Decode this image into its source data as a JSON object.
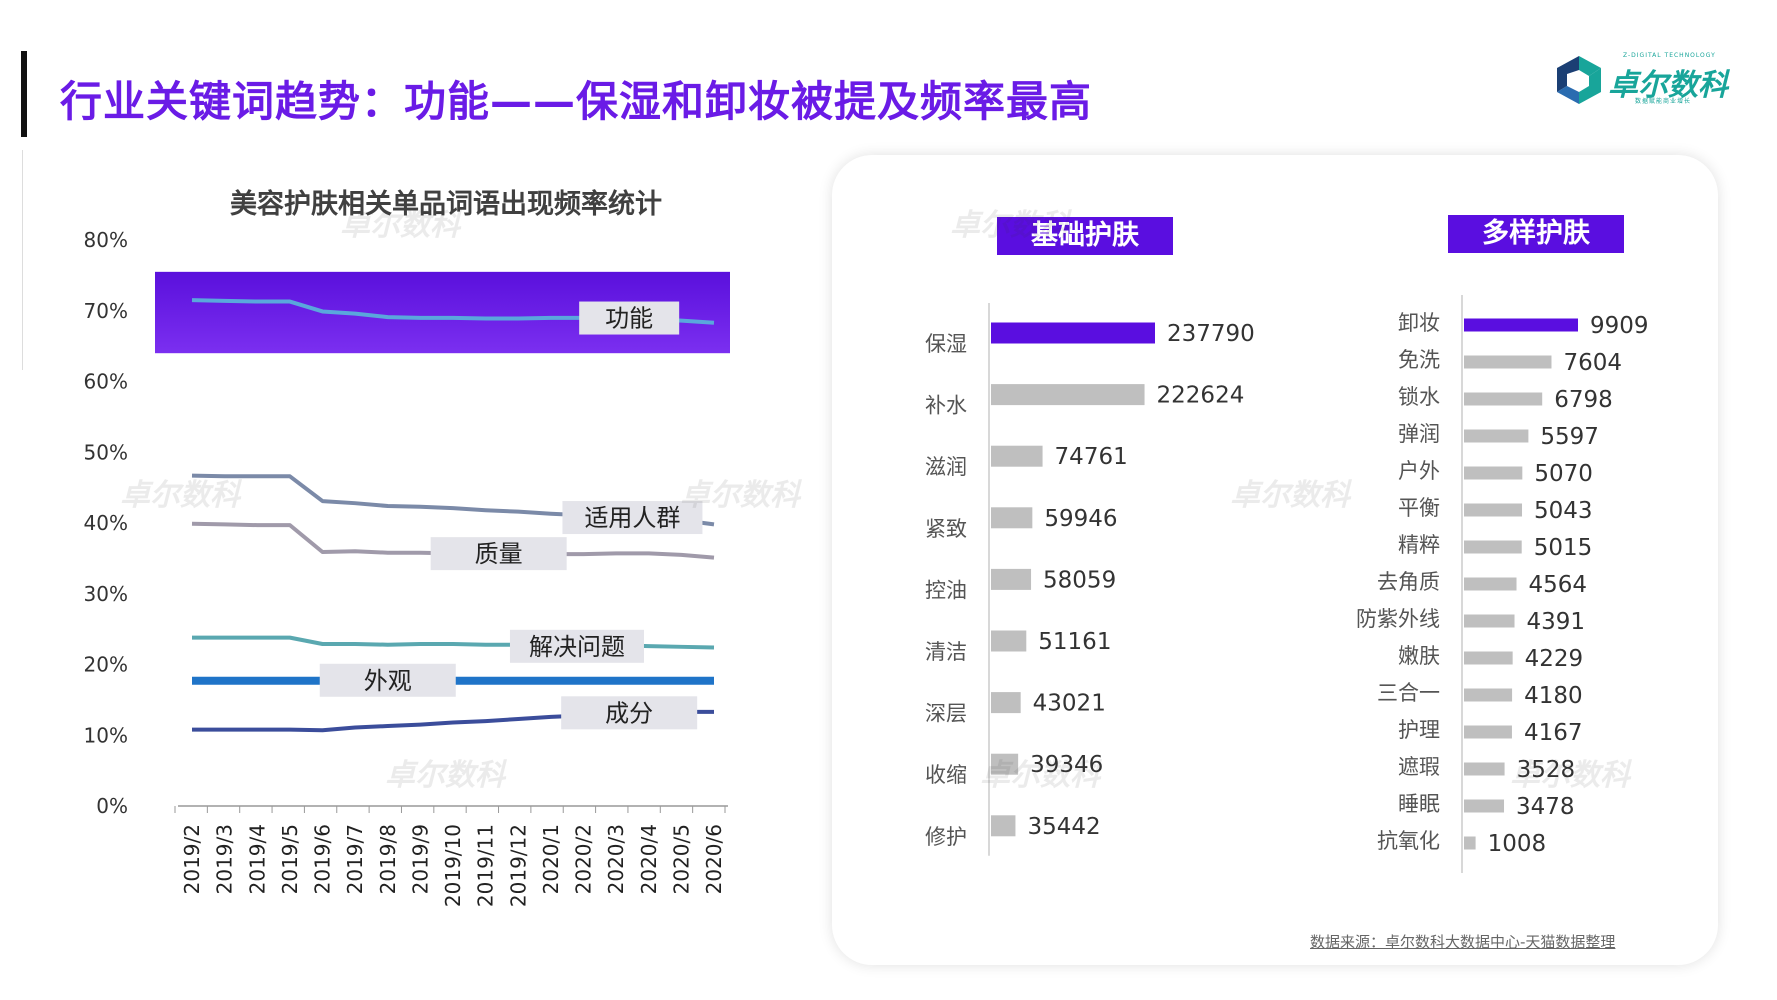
{
  "header": {
    "title": "行业关键词趋势：功能——保湿和卸妆被提及频率最高"
  },
  "logo": {
    "name": "卓尔数科",
    "tagline_top": "Z-DIGITAL TECHNOLOGY",
    "tagline_bottom": "数据赋能商业增长",
    "color": "#18a59a"
  },
  "watermark_text": "卓尔数科",
  "colors": {
    "accent_purple": "#5a0ee0",
    "title_purple": "#6a1be6",
    "bar_gray": "#bfbfbf"
  },
  "chart_data": [
    {
      "type": "line",
      "title": "美容护肤相关单品词语出现频率统计",
      "x": [
        "2019/2",
        "2019/3",
        "2019/4",
        "2019/5",
        "2019/6",
        "2019/7",
        "2019/8",
        "2019/9",
        "2019/10",
        "2019/11",
        "2019/12",
        "2020/1",
        "2020/2",
        "2020/3",
        "2020/4",
        "2020/5",
        "2020/6"
      ],
      "y_ticks": [
        "0%",
        "10%",
        "20%",
        "30%",
        "40%",
        "50%",
        "60%",
        "70%",
        "80%"
      ],
      "ylim": [
        0,
        80
      ],
      "grid": false,
      "highlight_band": {
        "series": "功能",
        "color": "#7b2ff0"
      },
      "series": [
        {
          "name": "功能",
          "color": "#5aa7dc",
          "values": [
            71.5,
            71.4,
            71.3,
            71.3,
            69.9,
            69.6,
            69.1,
            69.0,
            69.0,
            68.9,
            68.9,
            69.0,
            69.0,
            68.9,
            68.8,
            68.6,
            68.3
          ]
        },
        {
          "name": "适用人群",
          "color": "#7b8aa8",
          "values": [
            46.7,
            46.6,
            46.6,
            46.6,
            43.1,
            42.8,
            42.4,
            42.3,
            42.1,
            41.8,
            41.6,
            41.3,
            41.1,
            41.0,
            40.7,
            40.4,
            39.8
          ]
        },
        {
          "name": "质量",
          "color": "#a09aaa",
          "values": [
            39.9,
            39.8,
            39.7,
            39.7,
            35.9,
            36.0,
            35.8,
            35.8,
            35.7,
            35.6,
            35.6,
            35.6,
            35.6,
            35.7,
            35.7,
            35.5,
            35.1
          ]
        },
        {
          "name": "解决问题",
          "color": "#5aa8b0",
          "values": [
            23.8,
            23.8,
            23.8,
            23.8,
            22.9,
            22.9,
            22.8,
            22.9,
            22.9,
            22.8,
            22.8,
            22.8,
            22.7,
            22.7,
            22.6,
            22.5,
            22.4
          ]
        },
        {
          "name": "外观",
          "color": "#1f74c8",
          "values": [
            17.7,
            17.7,
            17.7,
            17.7,
            17.7,
            17.7,
            17.7,
            17.7,
            17.7,
            17.7,
            17.7,
            17.7,
            17.7,
            17.7,
            17.7,
            17.7,
            17.7
          ]
        },
        {
          "name": "成分",
          "color": "#3b4d9b",
          "values": [
            10.8,
            10.8,
            10.8,
            10.8,
            10.7,
            11.1,
            11.3,
            11.5,
            11.8,
            12.0,
            12.3,
            12.6,
            12.8,
            13.0,
            13.1,
            13.3,
            13.3
          ]
        }
      ]
    },
    {
      "type": "bar",
      "orientation": "horizontal",
      "title": "基础护肤",
      "categories": [
        "保湿",
        "补水",
        "滋润",
        "紧致",
        "控油",
        "清洁",
        "深层",
        "收缩",
        "修护"
      ],
      "values": [
        237790,
        222624,
        74761,
        59946,
        58059,
        51161,
        43021,
        39346,
        35442
      ],
      "highlight_index": 0
    },
    {
      "type": "bar",
      "orientation": "horizontal",
      "title": "多样护肤",
      "categories": [
        "卸妆",
        "免洗",
        "锁水",
        "弹润",
        "户外",
        "平衡",
        "精粹",
        "去角质",
        "防紫外线",
        "嫩肤",
        "三合一",
        "护理",
        "遮瑕",
        "睡眠",
        "抗氧化"
      ],
      "values": [
        9909,
        7604,
        6798,
        5597,
        5070,
        5043,
        5015,
        4564,
        4391,
        4229,
        4180,
        4167,
        3528,
        3478,
        1008
      ],
      "highlight_index": 0
    }
  ],
  "source": "数据来源：卓尔数科大数据中心-天猫数据整理"
}
